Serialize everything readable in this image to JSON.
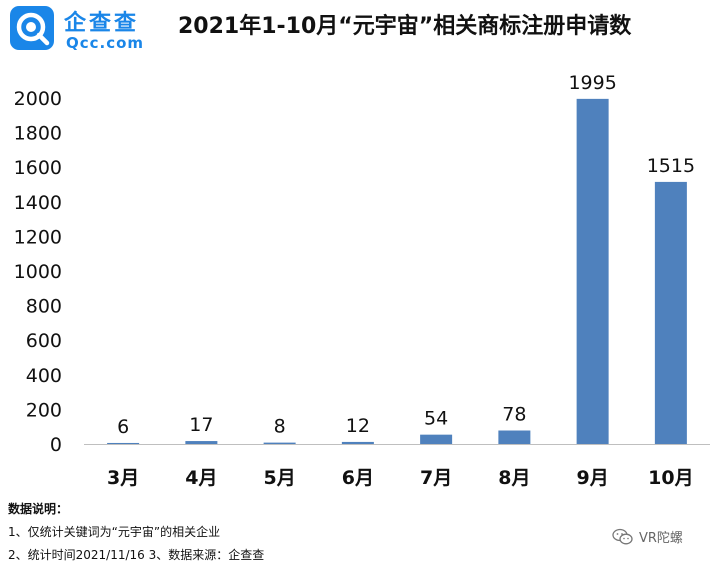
{
  "header": {
    "logo_cn": "企查查",
    "logo_en": "Qcc.com",
    "title": "2021年1-10月“元宇宙”相关商标注册申请数"
  },
  "chart_data": {
    "type": "bar",
    "title": "2021年1-10月“元宇宙”相关商标注册申请数",
    "categories": [
      "3月",
      "4月",
      "5月",
      "6月",
      "7月",
      "8月",
      "9月",
      "10月"
    ],
    "values": [
      6,
      17,
      8,
      12,
      54,
      78,
      1995,
      1515
    ],
    "y_ticks": [
      0,
      200,
      400,
      600,
      800,
      1000,
      1200,
      1400,
      1600,
      1800,
      2000
    ],
    "ylim": [
      0,
      2000
    ],
    "xlabel": "",
    "ylabel": "",
    "grid": false,
    "data_labels": true,
    "bar_color": "#4f81bd"
  },
  "notes": {
    "title": "数据说明：",
    "line1": "1、仅统计关键词为“元宇宙”的相关企业",
    "line2": "2、统计时间2021/11/16   3、数据来源：企查查"
  },
  "watermark": {
    "text": "VR陀螺",
    "icon": "wechat-icon"
  }
}
